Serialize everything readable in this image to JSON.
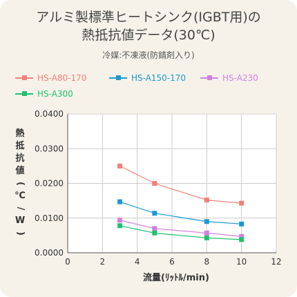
{
  "title_line1": "アルミ製標準ヒートシンク(IGBT用)の",
  "title_line2": "熱抵抗値データ(30℃)",
  "subtitle": "冷媒:不凍液(防錆剤入り)",
  "chart_data": {
    "type": "line",
    "xlabel": "流量(ﾘｯﾄﾙ/min)",
    "ylabel": "熱抵抗値(℃/W)",
    "xlim": [
      0,
      12
    ],
    "ylim": [
      0,
      0.04
    ],
    "xticks": [
      "0",
      "2",
      "4",
      "6",
      "8",
      "10",
      "12"
    ],
    "yticks": [
      "0.0000",
      "0.0100",
      "0.0200",
      "0.0300",
      "0.0400"
    ],
    "grid": "horizontal and vertical",
    "legend": "top",
    "x": [
      3,
      5,
      8,
      10
    ],
    "series": [
      {
        "name": "HS-A80-170",
        "color": "#f08078",
        "values": [
          0.025,
          0.02,
          0.0152,
          0.0143
        ]
      },
      {
        "name": "HS-A150-170",
        "color": "#1a9ad0",
        "values": [
          0.0147,
          0.0114,
          0.009,
          0.0083
        ]
      },
      {
        "name": "HS-A230",
        "color": "#d27fe0",
        "values": [
          0.0094,
          0.007,
          0.0057,
          0.0047
        ]
      },
      {
        "name": "HS-A300",
        "color": "#20c070",
        "values": [
          0.0078,
          0.0057,
          0.0043,
          0.0038
        ]
      }
    ]
  }
}
